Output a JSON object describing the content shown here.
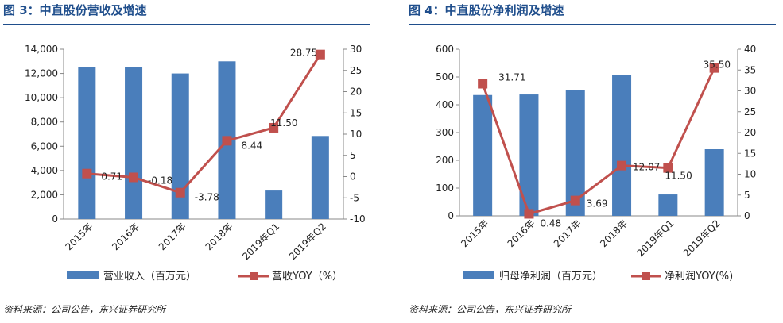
{
  "panels": [
    {
      "title": "图 3：中直股份营收及增速",
      "source": "资料来源：公司公告，东兴证券研究所",
      "chart_data": {
        "type": "bar+line",
        "categories": [
          "2015年",
          "2016年",
          "2017年",
          "2018年",
          "2019年Q1",
          "2019年Q2"
        ],
        "series": [
          {
            "name": "营业收入（百万元）",
            "type": "bar",
            "axis": "left",
            "values": [
              12500,
              12500,
              12000,
              13000,
              2350,
              6850
            ]
          },
          {
            "name": "营收YOY（%）",
            "type": "line",
            "axis": "right",
            "values": [
              0.71,
              -0.18,
              -3.78,
              8.44,
              11.5,
              28.75
            ],
            "labels": [
              "0.71",
              "-0.18",
              "-3.78",
              "8.44",
              "11.50",
              "28.75"
            ]
          }
        ],
        "y_left": {
          "min": 0,
          "max": 14000,
          "step": 2000,
          "ticks": [
            "0",
            "2,000",
            "4,000",
            "6,000",
            "8,000",
            "10,000",
            "12,000",
            "14,000"
          ]
        },
        "y_right": {
          "min": -10,
          "max": 30,
          "step": 5,
          "ticks": [
            "-10",
            "-5",
            "0",
            "5",
            "10",
            "15",
            "20",
            "25",
            "30"
          ]
        }
      }
    },
    {
      "title": "图 4：中直股份净利润及增速",
      "source": "资料来源：公司公告，东兴证券研究所",
      "chart_data": {
        "type": "bar+line",
        "categories": [
          "2015年",
          "2016年",
          "2017年",
          "2018年",
          "2019年Q1",
          "2019年Q2"
        ],
        "series": [
          {
            "name": "归母净利润（百万元）",
            "type": "bar",
            "axis": "left",
            "values": [
              435,
              437,
              453,
              508,
              77,
              240
            ]
          },
          {
            "name": "净利润YOY(%)",
            "type": "line",
            "axis": "right",
            "values": [
              31.71,
              0.48,
              3.69,
              12.07,
              11.5,
              35.5
            ],
            "labels": [
              "31.71",
              "0.48",
              "3.69",
              "12.07",
              "11.50",
              "35.50"
            ]
          }
        ],
        "y_left": {
          "min": 0,
          "max": 600,
          "step": 100,
          "ticks": [
            "0",
            "100",
            "200",
            "300",
            "400",
            "500",
            "600"
          ]
        },
        "y_right": {
          "min": 0,
          "max": 40,
          "step": 5,
          "ticks": [
            "0",
            "5",
            "10",
            "15",
            "20",
            "25",
            "30",
            "35",
            "40"
          ]
        }
      }
    }
  ],
  "colors": {
    "bar": "#4a7ebb",
    "line": "#c0504d",
    "title": "#1f4e8c",
    "axis": "#888888",
    "text": "#222222"
  }
}
